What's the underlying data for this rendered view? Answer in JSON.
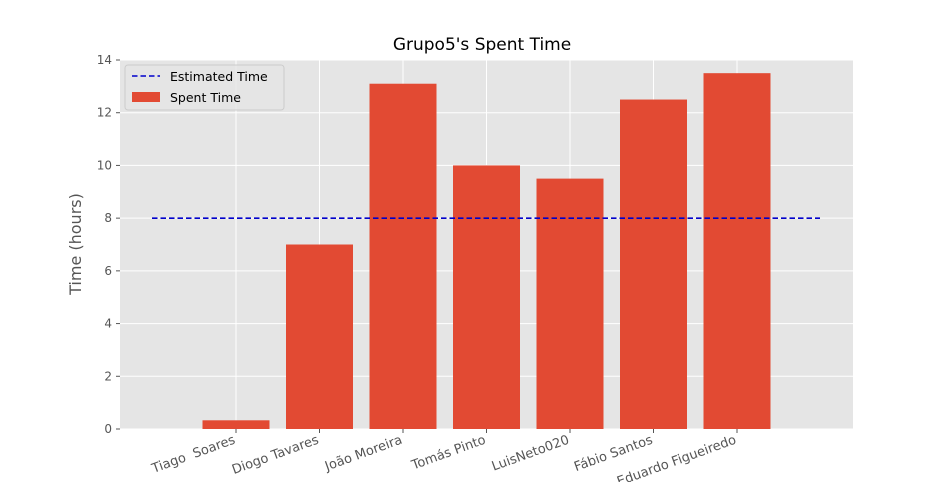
{
  "chart_data": {
    "type": "bar",
    "title": "Grupo5's Spent Time",
    "xlabel": "",
    "ylabel": "Time (hours)",
    "categories": [
      "Tiago  Soares",
      "Diogo Tavares",
      "João Moreira",
      "Tomás Pinto",
      "LuisNeto020",
      "Fábio Santos",
      "Eduardo Figueiredo"
    ],
    "series": [
      {
        "name": "Spent Time",
        "type": "bar",
        "values": [
          0.33,
          7.0,
          13.1,
          10.0,
          9.5,
          12.5,
          13.5
        ],
        "color": "#E24A33"
      },
      {
        "name": "Estimated Time",
        "type": "line",
        "style": "dashed",
        "value": 8,
        "color": "#0000CC"
      }
    ],
    "ylim": [
      0,
      14
    ],
    "yticks": [
      0,
      2,
      4,
      6,
      8,
      10,
      12,
      14
    ],
    "grid": true,
    "legend": "top-left",
    "background": "#E5E5E5"
  }
}
